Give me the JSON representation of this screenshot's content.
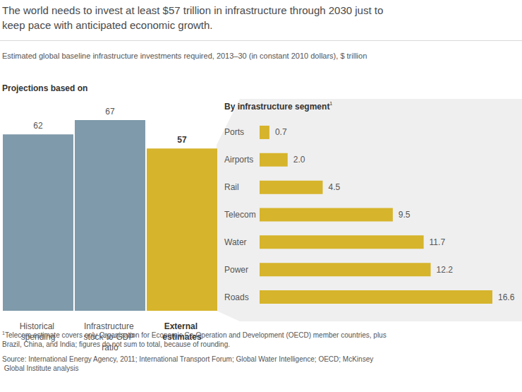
{
  "title": "The world needs to invest at least $57 trillion in infrastructure through 2030 just to keep pace with anticipated economic growth.",
  "subtitle": "Estimated global baseline infrastructure investments required, 2013–30 (in constant 2010 dollars), $ trillion",
  "footnote_mark": "1",
  "footnote": "Telecom estimate covers only Organisation for Economic Co-Operation and Development (OECD) member countries, plus Brazil, China, and India; figures do not sum to total, because of rounding.",
  "source": "Source: International Energy Agency, 2011; International Transport Forum; Global Water Intelligence; OECD; McKinsey Global Institute analysis",
  "chart_data": [
    {
      "type": "bar",
      "title": "Projections based on",
      "categories": [
        "Historical spending",
        "Infrastructure stock-to-GDP ratio",
        "External estimates"
      ],
      "values": [
        62,
        67,
        57
      ],
      "colors": [
        "#7f9aaa",
        "#7f9aaa",
        "#d6b42b"
      ],
      "ylim": [
        0,
        67
      ],
      "grid": false,
      "data_labels": true,
      "tick_labels": "x"
    },
    {
      "type": "bar",
      "title": "By infrastructure segment",
      "orientation": "horizontal",
      "categories": [
        "Ports",
        "Airports",
        "Rail",
        "Telecom",
        "Water",
        "Power",
        "Roads"
      ],
      "values": [
        0.7,
        2.0,
        4.5,
        9.5,
        11.7,
        12.2,
        16.6
      ],
      "value_labels": [
        "0.7",
        "2.0",
        "4.5",
        "9.5",
        "11.7",
        "12.2",
        "16.6"
      ],
      "color": "#d6b42b",
      "xlim": [
        0,
        16.6
      ],
      "grid": false,
      "data_labels": true,
      "tick_labels": "y"
    }
  ]
}
